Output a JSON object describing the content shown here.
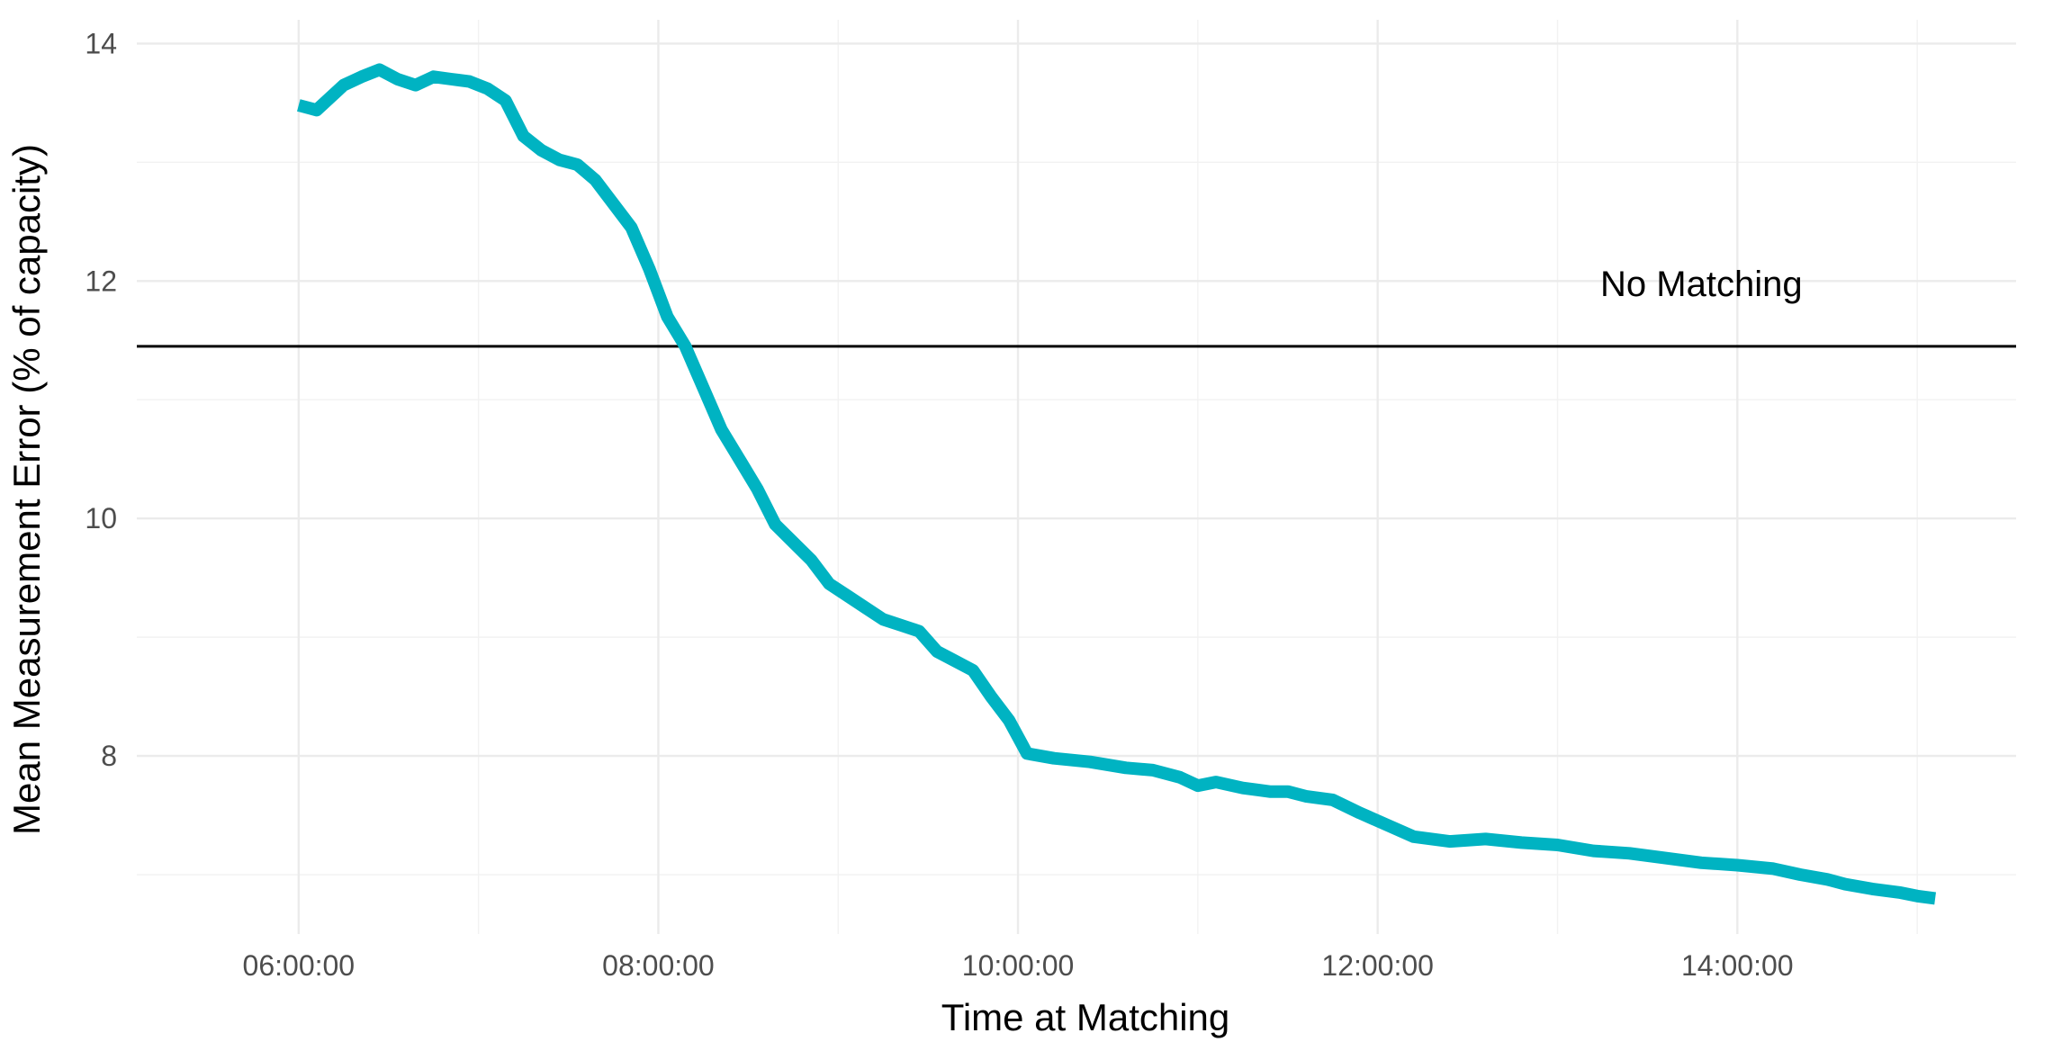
{
  "chart_data": {
    "type": "line",
    "title": "",
    "xlabel": "Time at Matching",
    "ylabel": "Mean Measurement Error (% of capacity)",
    "x_ticks": [
      {
        "label": "06:00:00",
        "hour": 6
      },
      {
        "label": "08:00:00",
        "hour": 8
      },
      {
        "label": "10:00:00",
        "hour": 10
      },
      {
        "label": "12:00:00",
        "hour": 12
      },
      {
        "label": "14:00:00",
        "hour": 14
      }
    ],
    "y_ticks": [
      8,
      10,
      12,
      14
    ],
    "xlim_hours": [
      5.1,
      15.55
    ],
    "ylim": [
      6.5,
      14.2
    ],
    "grid": true,
    "legend": "none",
    "line_color": "#00b3c2",
    "reference_line": {
      "y": 11.45,
      "label": "No Matching",
      "label_hour": 13.8,
      "label_y": 11.98,
      "color": "#000000"
    },
    "series": [
      {
        "x_hours": [
          6.0,
          6.1,
          6.25,
          6.35,
          6.45,
          6.55,
          6.65,
          6.75,
          6.85,
          6.95,
          7.05,
          7.15,
          7.25,
          7.35,
          7.45,
          7.55,
          7.65,
          7.75,
          7.85,
          7.95,
          8.05,
          8.15,
          8.25,
          8.35,
          8.45,
          8.55,
          8.65,
          8.75,
          8.85,
          8.95,
          9.05,
          9.15,
          9.25,
          9.35,
          9.45,
          9.55,
          9.65,
          9.75,
          9.85,
          9.95,
          10.05,
          10.2,
          10.4,
          10.6,
          10.75,
          10.9,
          11.0,
          11.1,
          11.25,
          11.4,
          11.5,
          11.6,
          11.75,
          11.9,
          12.05,
          12.2,
          12.4,
          12.6,
          12.8,
          13.0,
          13.2,
          13.4,
          13.6,
          13.8,
          14.0,
          14.2,
          14.35,
          14.5,
          14.6,
          14.75,
          14.9,
          15.0,
          15.1
        ],
        "y": [
          13.48,
          13.44,
          13.65,
          13.72,
          13.78,
          13.7,
          13.65,
          13.72,
          13.7,
          13.68,
          13.62,
          13.52,
          13.22,
          13.1,
          13.02,
          12.98,
          12.85,
          12.65,
          12.45,
          12.1,
          11.7,
          11.45,
          11.1,
          10.75,
          10.5,
          10.25,
          9.95,
          9.8,
          9.65,
          9.45,
          9.35,
          9.25,
          9.15,
          9.1,
          9.05,
          8.88,
          8.8,
          8.72,
          8.5,
          8.3,
          8.02,
          7.98,
          7.95,
          7.9,
          7.88,
          7.82,
          7.75,
          7.78,
          7.73,
          7.7,
          7.7,
          7.66,
          7.63,
          7.52,
          7.42,
          7.32,
          7.28,
          7.3,
          7.27,
          7.25,
          7.2,
          7.18,
          7.14,
          7.1,
          7.08,
          7.05,
          7.0,
          6.96,
          6.92,
          6.88,
          6.85,
          6.82,
          6.8
        ]
      }
    ]
  }
}
